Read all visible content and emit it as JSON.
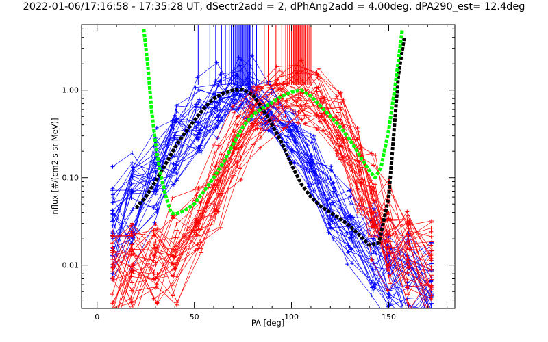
{
  "chart_data": {
    "type": "line",
    "title": "2022-01-06/17:16:58 - 17:35:28 UT, dSectr2add = 2, dPhAng2add = 4.00deg, dPA290_est=  12.4deg",
    "xlabel": "PA [deg]",
    "ylabel": "nflux [#/(cm2 s sr MeV)]",
    "xlim": [
      -8,
      184
    ],
    "ylim": [
      0.0032,
      5.6
    ],
    "yscale": "log",
    "grid": false,
    "x_ticks": [
      0,
      50,
      100,
      150
    ],
    "x_tick_labels": [
      "0",
      "50",
      "100",
      "150"
    ],
    "y_ticks": [
      0.01,
      0.1,
      1.0
    ],
    "y_tick_labels": [
      "0.01",
      "0.10",
      "1.00"
    ],
    "colors": {
      "blue": "#0000ff",
      "red": "#ff0000",
      "black": "#000000",
      "green": "#00ff00"
    },
    "blue_pa_marks": [
      52,
      58,
      61,
      64,
      66,
      68,
      69,
      70,
      71,
      72,
      72.5,
      73,
      73.5,
      74,
      74.5,
      75,
      75.5,
      76,
      76.5,
      77,
      77.5,
      78,
      78.5,
      79,
      80,
      82
    ],
    "red_pa_marks": [
      86,
      88,
      92,
      95,
      97,
      98,
      99,
      100,
      101,
      101.5,
      102,
      102.5,
      103,
      103.5,
      104,
      104.5,
      105,
      105.5,
      106,
      106.5,
      107,
      108,
      109,
      110
    ],
    "series": [
      {
        "name": "",
        "color": "black",
        "x": [
          20,
          25,
          30,
          35,
          40,
          45,
          50,
          55,
          60,
          65,
          70,
          75,
          80,
          85,
          90,
          95,
          100,
          105,
          110,
          115,
          120,
          125,
          130,
          135,
          140,
          145,
          150,
          155,
          158
        ],
        "y": [
          0.045,
          0.06,
          0.09,
          0.14,
          0.22,
          0.32,
          0.45,
          0.62,
          0.8,
          0.92,
          1.0,
          1.02,
          0.88,
          0.62,
          0.4,
          0.25,
          0.14,
          0.085,
          0.06,
          0.047,
          0.04,
          0.034,
          0.028,
          0.022,
          0.017,
          0.018,
          0.06,
          1.5,
          4.0
        ]
      },
      {
        "name": "",
        "color": "green",
        "x": [
          24,
          26,
          28,
          30,
          32,
          35,
          38,
          40,
          45,
          50,
          55,
          60,
          65,
          70,
          75,
          80,
          85,
          90,
          95,
          100,
          105,
          110,
          115,
          120,
          125,
          130,
          135,
          140,
          143,
          146,
          150,
          153,
          155,
          157
        ],
        "y": [
          5.0,
          2.0,
          0.6,
          0.25,
          0.13,
          0.065,
          0.04,
          0.038,
          0.042,
          0.05,
          0.07,
          0.1,
          0.15,
          0.24,
          0.38,
          0.52,
          0.62,
          0.72,
          0.85,
          0.95,
          1.0,
          0.85,
          0.65,
          0.5,
          0.38,
          0.27,
          0.18,
          0.12,
          0.1,
          0.13,
          0.35,
          1.0,
          2.2,
          5.0
        ]
      },
      {
        "name": "",
        "color": "blue",
        "x": [
          8,
          18,
          30,
          40,
          52,
          62,
          72,
          78,
          88,
          100,
          110,
          120,
          130,
          142,
          150,
          160,
          172
        ],
        "y": [
          0.025,
          0.04,
          0.1,
          0.22,
          0.45,
          0.7,
          0.95,
          0.95,
          0.6,
          0.3,
          0.13,
          0.05,
          0.022,
          0.012,
          0.008,
          0.006,
          0.005
        ]
      },
      {
        "name": "",
        "color": "red",
        "x": [
          8,
          18,
          30,
          40,
          52,
          62,
          72,
          82,
          95,
          105,
          115,
          125,
          135,
          142,
          150,
          160,
          172
        ],
        "y": [
          0.006,
          0.01,
          0.012,
          0.015,
          0.03,
          0.08,
          0.25,
          0.55,
          0.85,
          0.95,
          0.7,
          0.35,
          0.12,
          0.05,
          0.025,
          0.015,
          0.01
        ]
      }
    ]
  }
}
